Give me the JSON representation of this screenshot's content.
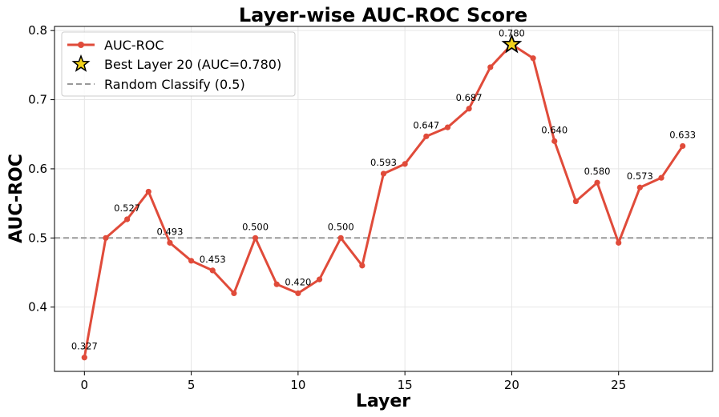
{
  "chart_data": {
    "type": "line",
    "title": "Layer-wise AUC-ROC Score",
    "xlabel": "Layer",
    "ylabel": "AUC-ROC",
    "xlim": [
      -1.4,
      29.4
    ],
    "ylim": [
      0.307,
      0.806
    ],
    "xticks": [
      0,
      5,
      10,
      15,
      20,
      25
    ],
    "yticks": [
      0.4,
      0.5,
      0.6,
      0.7,
      0.8
    ],
    "grid": true,
    "legend_position": "top-left",
    "series": [
      {
        "name": "AUC-ROC",
        "color": "#e04b3a",
        "x": [
          0,
          1,
          2,
          3,
          4,
          5,
          6,
          7,
          8,
          9,
          10,
          11,
          12,
          13,
          14,
          15,
          16,
          17,
          18,
          19,
          20,
          21,
          22,
          23,
          24,
          25,
          26,
          27,
          28
        ],
        "y": [
          0.327,
          0.5,
          0.527,
          0.567,
          0.493,
          0.467,
          0.453,
          0.42,
          0.5,
          0.433,
          0.42,
          0.44,
          0.5,
          0.46,
          0.593,
          0.607,
          0.647,
          0.66,
          0.687,
          0.747,
          0.78,
          0.76,
          0.64,
          0.553,
          0.58,
          0.493,
          0.573,
          0.587,
          0.633
        ]
      }
    ],
    "data_labels": [
      {
        "x": 0,
        "y": 0.327,
        "text": "0.327"
      },
      {
        "x": 2,
        "y": 0.527,
        "text": "0.527"
      },
      {
        "x": 4,
        "y": 0.493,
        "text": "0.493"
      },
      {
        "x": 6,
        "y": 0.453,
        "text": "0.453"
      },
      {
        "x": 8,
        "y": 0.5,
        "text": "0.500"
      },
      {
        "x": 10,
        "y": 0.42,
        "text": "0.420"
      },
      {
        "x": 12,
        "y": 0.5,
        "text": "0.500"
      },
      {
        "x": 14,
        "y": 0.593,
        "text": "0.593"
      },
      {
        "x": 16,
        "y": 0.647,
        "text": "0.647"
      },
      {
        "x": 18,
        "y": 0.687,
        "text": "0.687"
      },
      {
        "x": 20,
        "y": 0.78,
        "text": "0.780"
      },
      {
        "x": 22,
        "y": 0.64,
        "text": "0.640"
      },
      {
        "x": 24,
        "y": 0.58,
        "text": "0.580"
      },
      {
        "x": 26,
        "y": 0.573,
        "text": "0.573"
      },
      {
        "x": 28,
        "y": 0.633,
        "text": "0.633"
      }
    ],
    "best_point": {
      "x": 20,
      "y": 0.78,
      "name": "Best Layer 20 (AUC=0.780)",
      "color": "#f2d21b"
    },
    "reference_line": {
      "y": 0.5,
      "name": "Random Classify (0.5)",
      "color": "#999999"
    }
  }
}
